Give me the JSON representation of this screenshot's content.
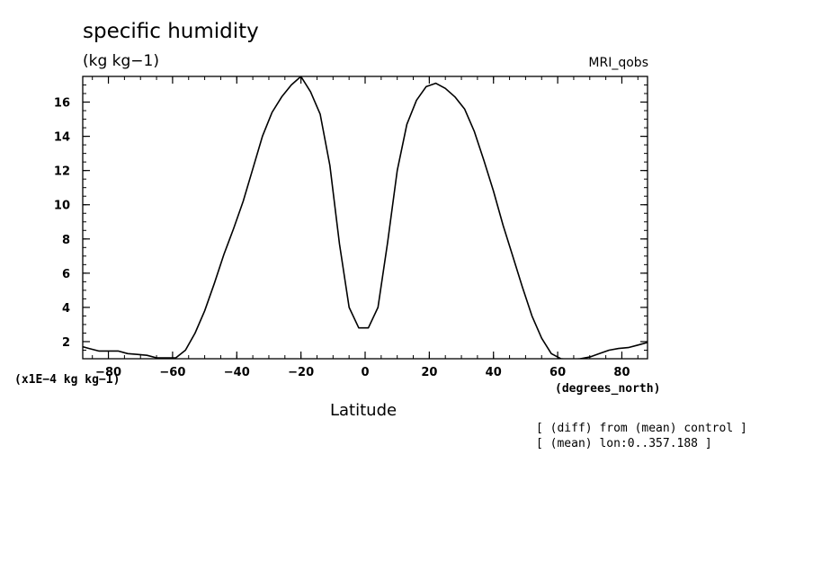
{
  "chart_data": {
    "type": "line",
    "title": "specific humidity",
    "units": "(kg kg−1)",
    "dataset_label": "MRI_qobs",
    "scale_note": "(x1E−4 kg kg−1)",
    "xlabel": "Latitude",
    "x_units": "(degrees_north)",
    "notes": [
      "[ (diff) from (mean) control ]",
      "[ (mean) lon:0..357.188 ]"
    ],
    "xlim": [
      -88,
      88
    ],
    "ylim": [
      1,
      17.5
    ],
    "x_ticks": [
      -80,
      -60,
      -40,
      -20,
      0,
      20,
      40,
      60,
      80
    ],
    "x_tick_labels": [
      "−80",
      "−60",
      "−40",
      "−20",
      "0",
      "20",
      "40",
      "60",
      "80"
    ],
    "y_ticks": [
      2,
      4,
      6,
      8,
      10,
      12,
      14,
      16
    ],
    "y_tick_labels": [
      "2",
      "4",
      "6",
      "8",
      "10",
      "12",
      "14",
      "16"
    ],
    "grid": false,
    "series": [
      {
        "x": [
          -88,
          -86,
          -83,
          -80,
          -77,
          -74,
          -71,
          -68,
          -65,
          -62,
          -59,
          -56,
          -53,
          -50,
          -47,
          -44,
          -41,
          -38,
          -35,
          -32,
          -29,
          -26,
          -23,
          -20,
          -17,
          -14,
          -11,
          -8,
          -5,
          -2,
          1,
          4,
          7,
          10,
          13,
          16,
          19,
          22,
          25,
          28,
          31,
          34,
          37,
          40,
          43,
          46,
          49,
          52,
          55,
          58,
          61,
          64,
          67,
          70,
          73,
          76,
          79,
          82,
          85,
          88
        ],
        "y": [
          1.7,
          1.6,
          1.45,
          1.45,
          1.45,
          1.3,
          1.25,
          1.2,
          1.05,
          1.05,
          1.05,
          1.5,
          2.5,
          3.8,
          5.4,
          7.1,
          8.6,
          10.2,
          12.1,
          14.0,
          15.4,
          16.3,
          17.0,
          17.5,
          16.6,
          15.3,
          12.3,
          7.7,
          4.0,
          2.8,
          2.8,
          4.0,
          7.8,
          12.0,
          14.7,
          16.1,
          16.9,
          17.1,
          16.8,
          16.3,
          15.6,
          14.3,
          12.6,
          10.8,
          8.8,
          7.0,
          5.2,
          3.5,
          2.2,
          1.3,
          1.0,
          0.95,
          1.0,
          1.1,
          1.3,
          1.5,
          1.6,
          1.65,
          1.8,
          1.95
        ]
      }
    ]
  }
}
